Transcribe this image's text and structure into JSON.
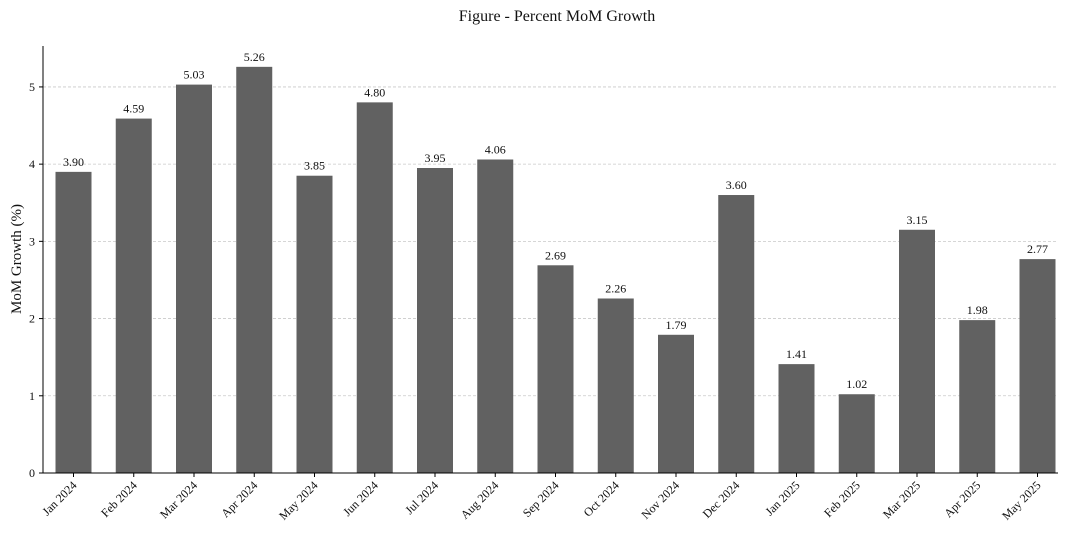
{
  "chart_data": {
    "type": "bar",
    "title": "Figure - Percent MoM Growth",
    "xlabel": "",
    "ylabel": "MoM Growth (%)",
    "categories": [
      "Jan 2024",
      "Feb 2024",
      "Mar 2024",
      "Apr 2024",
      "May 2024",
      "Jun 2024",
      "Jul 2024",
      "Aug 2024",
      "Sep 2024",
      "Oct 2024",
      "Nov 2024",
      "Dec 2024",
      "Jan 2025",
      "Feb 2025",
      "Mar 2025",
      "Apr 2025",
      "May 2025"
    ],
    "values": [
      3.9,
      4.59,
      5.03,
      5.26,
      3.85,
      4.8,
      3.95,
      4.06,
      2.69,
      2.26,
      1.79,
      3.6,
      1.41,
      1.02,
      3.15,
      1.98,
      2.77
    ],
    "value_labels": [
      "3.90",
      "4.59",
      "5.03",
      "5.26",
      "3.85",
      "4.80",
      "3.95",
      "4.06",
      "2.69",
      "2.26",
      "1.79",
      "3.60",
      "1.41",
      "1.02",
      "3.15",
      "1.98",
      "2.77"
    ],
    "y_ticks": [
      0,
      1,
      2,
      3,
      4,
      5
    ],
    "ylim": [
      0,
      5.53
    ],
    "grid": "y-dashed",
    "bar_color": "#616161"
  }
}
